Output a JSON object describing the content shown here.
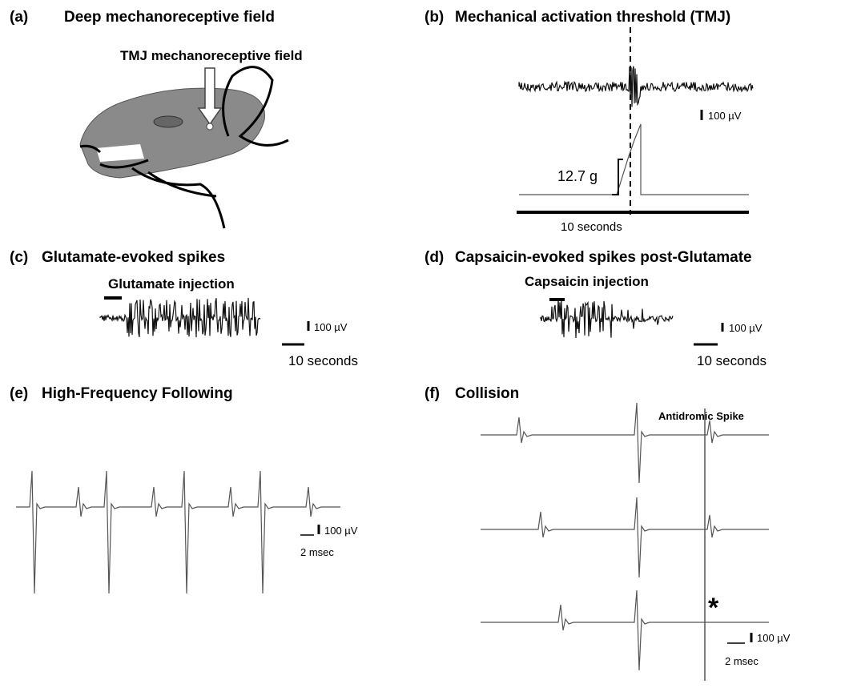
{
  "panels": [
    {
      "letter": "(a)",
      "title": "Deep mechanoreceptive field",
      "labels": [
        "TMJ mechanoreceptive field"
      ]
    },
    {
      "letter": "(b)",
      "title": "Mechanical activation threshold (TMJ)",
      "labels": [
        "100 µV",
        "12.7 g",
        "10 seconds"
      ]
    },
    {
      "letter": "(c)",
      "title": "Glutamate-evoked spikes",
      "labels": [
        "Glutamate injection",
        "100 µV",
        "10 seconds"
      ]
    },
    {
      "letter": "(d)",
      "title": "Capsaicin-evoked spikes post-Glutamate",
      "labels": [
        "Capsaicin injection",
        "100 µV",
        "10 seconds"
      ]
    },
    {
      "letter": "(e)",
      "title": "High-Frequency Following",
      "labels": [
        "100 µV",
        "2 msec"
      ]
    },
    {
      "letter": "(f)",
      "title": "Collision",
      "labels": [
        "Antidromic Spike",
        "*",
        "100 µV",
        "2 msec"
      ]
    }
  ]
}
